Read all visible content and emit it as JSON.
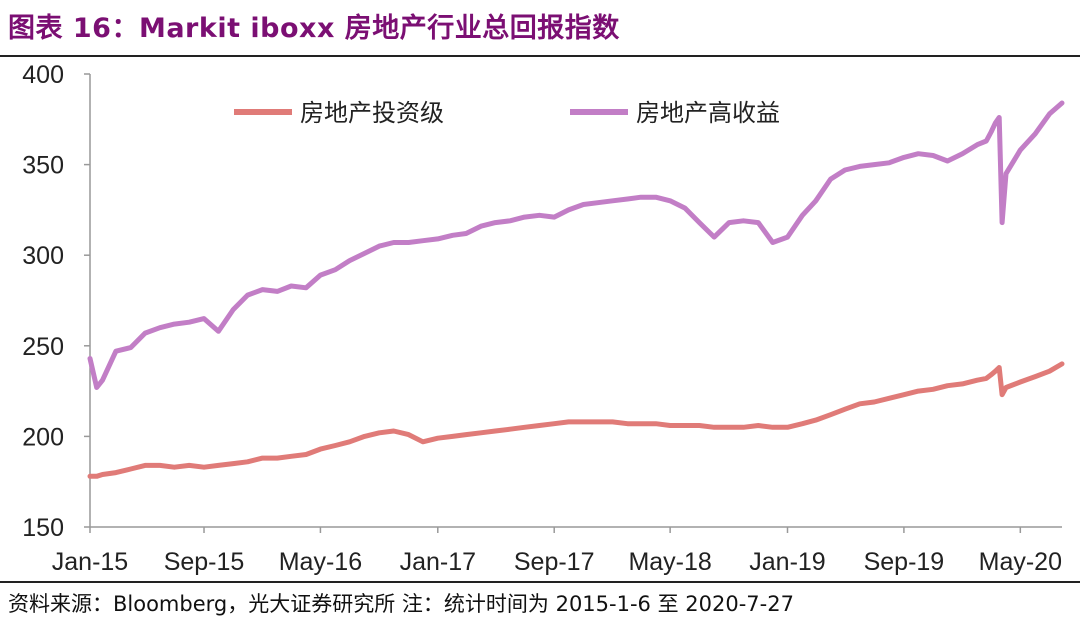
{
  "header": {
    "title": "图表 16：Markit iboxx 房地产行业总回报指数"
  },
  "footer": {
    "source": "资料来源：Bloomberg，光大证券研究所 注：统计时间为 2015-1-6 至 2020-7-27"
  },
  "colors": {
    "title": "#7b0f73",
    "investment_grade": "#e07b78",
    "high_yield": "#c27ec6",
    "axis": "#999999"
  },
  "chart_data": {
    "type": "line",
    "ylim": [
      150,
      400
    ],
    "yticks": [
      150,
      200,
      250,
      300,
      350,
      400
    ],
    "xlim": [
      "2015-01-06",
      "2020-07-27"
    ],
    "xticks": [
      "Jan-15",
      "Sep-15",
      "May-16",
      "Jan-17",
      "Sep-17",
      "May-18",
      "Jan-19",
      "Sep-19",
      "May-20"
    ],
    "xlabel": "",
    "ylabel": "",
    "grid": false,
    "legend_position": "top",
    "x": [
      "2015-01-06",
      "2015-01-20",
      "2015-02-01",
      "2015-03-01",
      "2015-04-01",
      "2015-05-01",
      "2015-06-01",
      "2015-07-01",
      "2015-08-01",
      "2015-09-01",
      "2015-10-01",
      "2015-11-01",
      "2015-12-01",
      "2016-01-01",
      "2016-02-01",
      "2016-03-01",
      "2016-04-01",
      "2016-05-01",
      "2016-06-01",
      "2016-07-01",
      "2016-08-01",
      "2016-09-01",
      "2016-10-01",
      "2016-11-01",
      "2016-12-01",
      "2017-01-01",
      "2017-02-01",
      "2017-03-01",
      "2017-04-01",
      "2017-05-01",
      "2017-06-01",
      "2017-07-01",
      "2017-08-01",
      "2017-09-01",
      "2017-10-01",
      "2017-11-01",
      "2017-12-01",
      "2018-01-01",
      "2018-02-01",
      "2018-03-01",
      "2018-04-01",
      "2018-05-01",
      "2018-06-01",
      "2018-07-01",
      "2018-08-01",
      "2018-09-01",
      "2018-10-01",
      "2018-11-01",
      "2018-12-01",
      "2019-01-01",
      "2019-02-01",
      "2019-03-01",
      "2019-04-01",
      "2019-05-01",
      "2019-06-01",
      "2019-07-01",
      "2019-08-01",
      "2019-09-01",
      "2019-10-01",
      "2019-11-01",
      "2019-12-01",
      "2020-01-01",
      "2020-02-01",
      "2020-02-20",
      "2020-03-01",
      "2020-03-10",
      "2020-03-18",
      "2020-03-24",
      "2020-04-01",
      "2020-05-01",
      "2020-06-01",
      "2020-07-01",
      "2020-07-27"
    ],
    "series": [
      {
        "name": "房地产投资级",
        "color": "#e07b78",
        "values": [
          178,
          178,
          179,
          180,
          182,
          184,
          184,
          183,
          184,
          183,
          184,
          185,
          186,
          188,
          188,
          189,
          190,
          193,
          195,
          197,
          200,
          202,
          203,
          201,
          197,
          199,
          200,
          201,
          202,
          203,
          204,
          205,
          206,
          207,
          208,
          208,
          208,
          208,
          207,
          207,
          207,
          206,
          206,
          206,
          205,
          205,
          205,
          206,
          205,
          205,
          207,
          209,
          212,
          215,
          218,
          219,
          221,
          223,
          225,
          226,
          228,
          229,
          231,
          232,
          234,
          236,
          238,
          223,
          227,
          230,
          233,
          236,
          240
        ]
      },
      {
        "name": "房地产高收益",
        "color": "#c27ec6",
        "values": [
          243,
          227,
          231,
          247,
          249,
          257,
          260,
          262,
          263,
          265,
          258,
          270,
          278,
          281,
          280,
          283,
          282,
          289,
          292,
          297,
          301,
          305,
          307,
          307,
          308,
          309,
          311,
          312,
          316,
          318,
          319,
          321,
          322,
          321,
          325,
          328,
          329,
          330,
          331,
          332,
          332,
          330,
          326,
          318,
          310,
          318,
          319,
          318,
          307,
          310,
          322,
          330,
          342,
          347,
          349,
          350,
          351,
          354,
          356,
          355,
          352,
          356,
          361,
          363,
          368,
          373,
          376,
          318,
          345,
          358,
          367,
          378,
          384
        ]
      }
    ]
  }
}
